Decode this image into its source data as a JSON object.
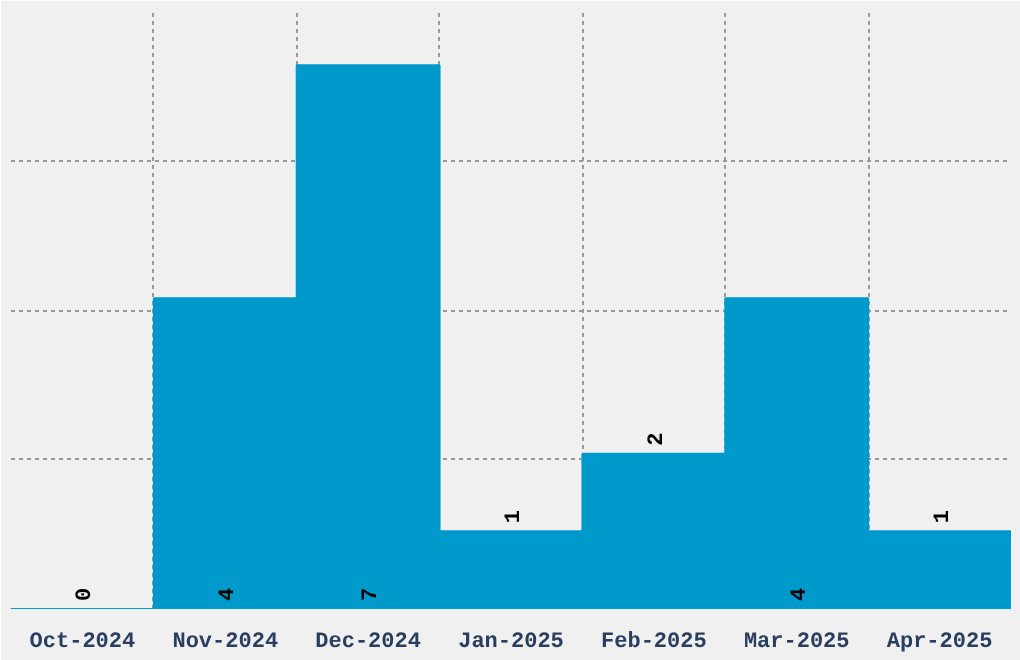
{
  "chart_data": {
    "type": "bar",
    "categories": [
      "Oct-2024",
      "Nov-2024",
      "Dec-2024",
      "Jan-2025",
      "Feb-2025",
      "Mar-2025",
      "Apr-2025"
    ],
    "values": [
      0,
      4,
      7,
      1,
      2,
      4,
      1
    ],
    "color": "#0099cc",
    "data_labels": true,
    "grid": true,
    "tick_labels": "x",
    "ylim": [
      0,
      7.7
    ],
    "yticks": [
      {
        "value": 1.925,
        "label": null
      },
      {
        "value": 3.85,
        "label": null
      },
      {
        "value": 5.775,
        "label": null
      },
      {
        "value": 7.7,
        "label": null
      }
    ]
  }
}
